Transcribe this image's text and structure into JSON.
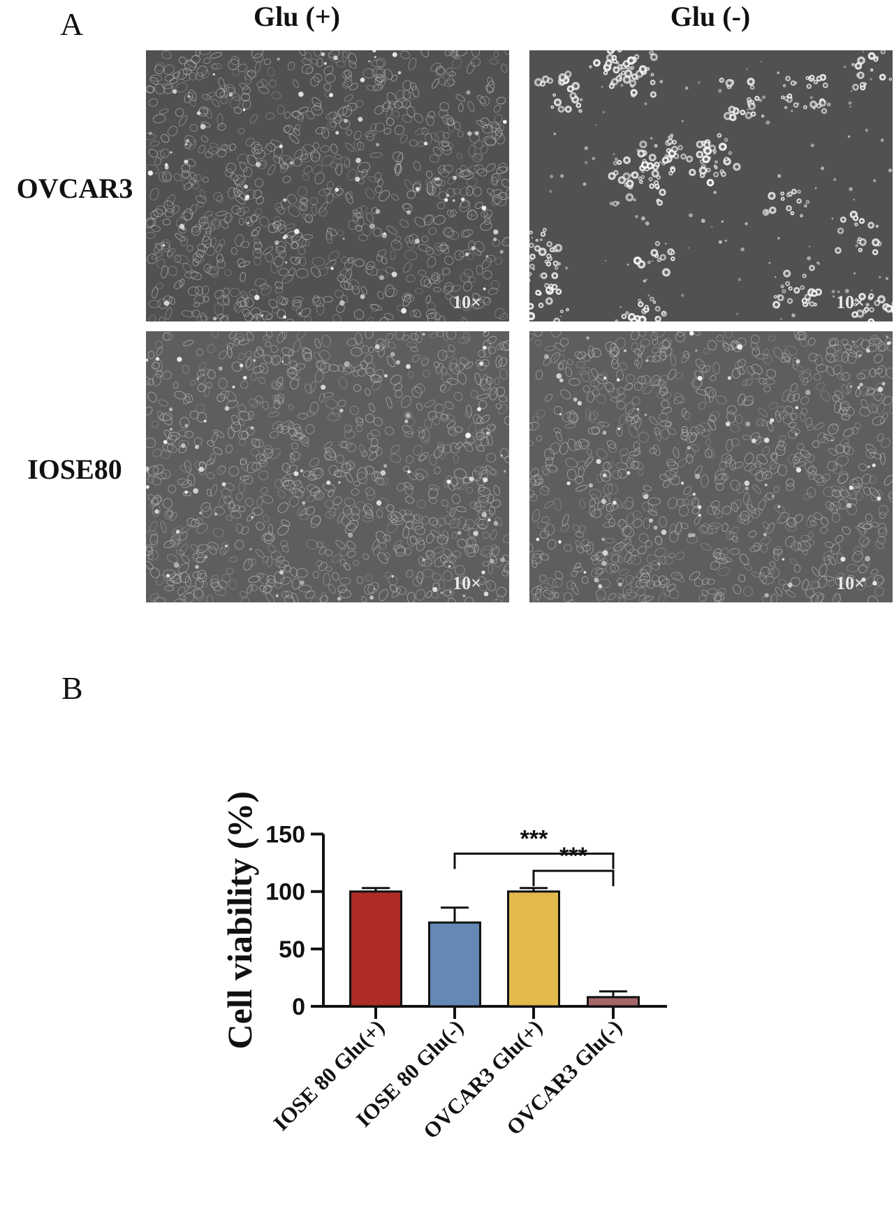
{
  "panel_a": {
    "letter": "A",
    "columns": [
      "Glu (+)",
      "Glu (-)"
    ],
    "rows": [
      "OVCAR3",
      "IOSE80"
    ],
    "magnification": "10×",
    "images": [
      {
        "row": "OVCAR3",
        "condition": "Glu (+)",
        "density": "dense"
      },
      {
        "row": "OVCAR3",
        "condition": "Glu (-)",
        "density": "sparse-clusters"
      },
      {
        "row": "IOSE80",
        "condition": "Glu (+)",
        "density": "dense"
      },
      {
        "row": "IOSE80",
        "condition": "Glu (-)",
        "density": "dense"
      }
    ]
  },
  "panel_b": {
    "letter": "B",
    "chart_data": {
      "type": "bar",
      "ylabel": "Cell viability (%)",
      "ylim": [
        0,
        150
      ],
      "yticks": [
        0,
        50,
        100,
        150
      ],
      "categories": [
        "IOSE 80 Glu(+)",
        "IOSE 80 Glu(-)",
        "OVCAR3 Glu(+)",
        "OVCAR3 Glu(-)"
      ],
      "values": [
        100,
        73,
        100,
        8
      ],
      "errors": [
        3,
        13,
        3,
        5
      ],
      "colors": [
        "#ad2d26",
        "#6389b4",
        "#e2b94c",
        "#a46668"
      ],
      "significance": [
        {
          "from": 1,
          "to": 3,
          "label": "***",
          "y": 133
        },
        {
          "from": 2,
          "to": 3,
          "label": "***",
          "y": 118
        }
      ]
    }
  }
}
